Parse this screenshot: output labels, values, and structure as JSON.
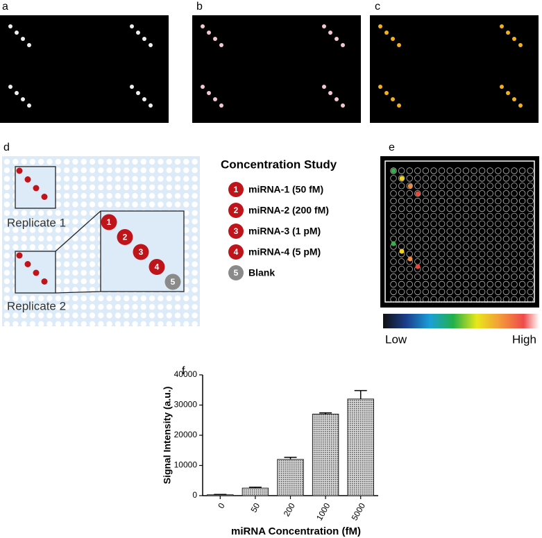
{
  "panel_labels": [
    "a",
    "b",
    "c",
    "d",
    "e",
    "f"
  ],
  "diagram": {
    "replicates": [
      "Replicate 1",
      "Replicate 2"
    ]
  },
  "legend": {
    "title": "Concentration Study",
    "items": [
      {
        "number": "1",
        "label": "miRNA-1 (50 fM)",
        "color": "#c0141b"
      },
      {
        "number": "2",
        "label": "miRNA-2 (200 fM)",
        "color": "#c0141b"
      },
      {
        "number": "3",
        "label": "miRNA-3 (1 pM)",
        "color": "#c0141b"
      },
      {
        "number": "4",
        "label": "miRNA-4 (5 pM)",
        "color": "#c0141b"
      },
      {
        "number": "5",
        "label": "Blank",
        "color": "#8a8a8a"
      }
    ]
  },
  "colorbar": {
    "low": "Low",
    "high": "High"
  },
  "chart_data": {
    "type": "bar",
    "x_label": "miRNA Concentration (fM)",
    "y_label": "Signal Intensity (a.u.)",
    "categories": [
      "0",
      "50",
      "200",
      "1000",
      "5000"
    ],
    "values": [
      300,
      2500,
      12000,
      27000,
      32000
    ],
    "errors": [
      100,
      300,
      700,
      400,
      2800
    ],
    "color": "#a8a8a8",
    "ylim": [
      0,
      40000
    ],
    "yticks": [
      0,
      10000,
      20000,
      30000,
      40000
    ]
  }
}
